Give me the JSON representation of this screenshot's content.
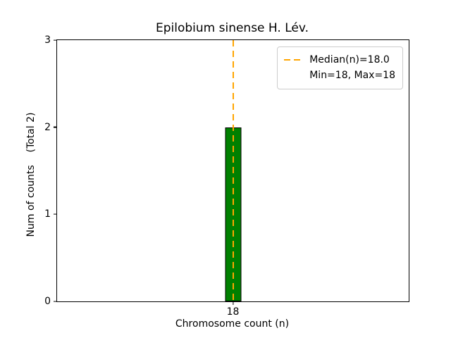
{
  "chart_data": {
    "type": "bar",
    "title": "Epilobium sinense H. Lév.",
    "categories": [
      "18"
    ],
    "values": [
      2
    ],
    "xlabel": "Chromosome count (n)",
    "ylabel": "Num of counts    (Total 2)",
    "ylim": [
      0,
      3
    ],
    "yticks": [
      "0",
      "1",
      "2",
      "3"
    ],
    "grid": false,
    "legend_position": "upper right",
    "legend": {
      "median_label": "Median(n)=18.0",
      "minmax_label": "Min=18, Max=18"
    },
    "median": 18.0,
    "min": 18,
    "max": 18,
    "colors": {
      "bar_fill": "#008000",
      "bar_edge": "#000000",
      "median_line": "#ffa500",
      "axis": "#000000",
      "legend_border": "#cccccc",
      "background": "#ffffff"
    }
  }
}
